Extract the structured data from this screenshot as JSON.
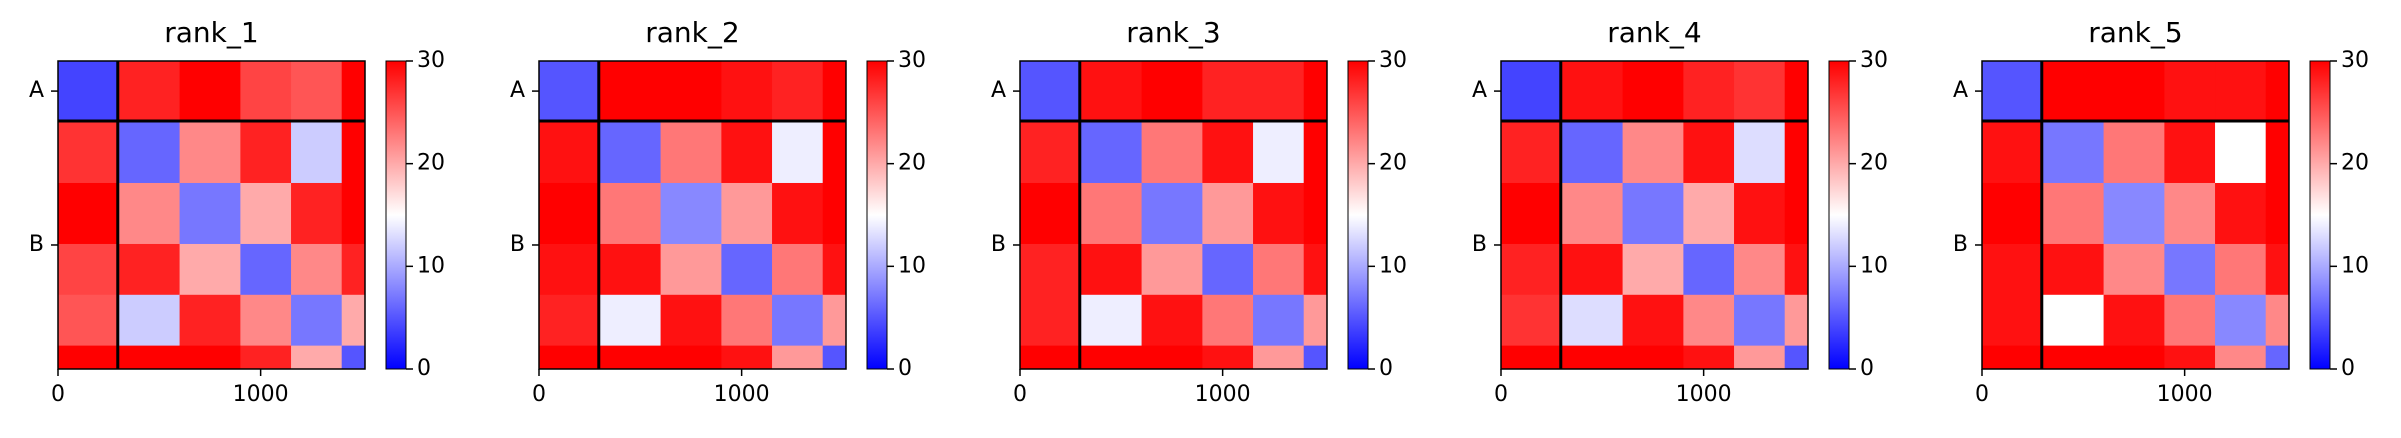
{
  "chart_data": [
    {
      "type": "heatmap",
      "title": "rank_1",
      "xlim": [
        0,
        1515
      ],
      "xticks": [
        0,
        1000
      ],
      "ylim": [
        0,
        1515
      ],
      "yticks": [
        {
          "value": 148,
          "label": "A"
        },
        {
          "value": 905,
          "label": "B"
        }
      ],
      "boundaries": [
        295
      ],
      "x_bins": [
        0,
        295,
        600,
        900,
        1150,
        1400,
        1515
      ],
      "y_bins": [
        0,
        295,
        600,
        900,
        1150,
        1400,
        1515
      ],
      "values": [
        [
          4,
          28,
          30,
          26,
          25,
          30
        ],
        [
          27,
          6,
          22,
          28,
          12,
          30
        ],
        [
          30,
          22,
          7,
          20,
          28,
          30
        ],
        [
          26,
          28,
          20,
          6,
          22,
          28
        ],
        [
          25,
          12,
          28,
          22,
          7,
          20
        ],
        [
          30,
          30,
          30,
          28,
          20,
          5
        ]
      ],
      "clim": [
        0,
        30
      ],
      "cticks": [
        0,
        10,
        20,
        30
      ]
    },
    {
      "type": "heatmap",
      "title": "rank_2",
      "xlim": [
        0,
        1515
      ],
      "xticks": [
        0,
        1000
      ],
      "ylim": [
        0,
        1515
      ],
      "yticks": [
        {
          "value": 148,
          "label": "A"
        },
        {
          "value": 905,
          "label": "B"
        }
      ],
      "boundaries": [
        295
      ],
      "x_bins": [
        0,
        295,
        600,
        900,
        1150,
        1400,
        1515
      ],
      "y_bins": [
        0,
        295,
        600,
        900,
        1150,
        1400,
        1515
      ],
      "values": [
        [
          5,
          30,
          30,
          29,
          28,
          30
        ],
        [
          29,
          6,
          23,
          29,
          14,
          30
        ],
        [
          30,
          23,
          8,
          21,
          29,
          30
        ],
        [
          29,
          29,
          21,
          6,
          23,
          29
        ],
        [
          28,
          14,
          29,
          23,
          7,
          21
        ],
        [
          30,
          30,
          30,
          29,
          21,
          5
        ]
      ],
      "clim": [
        0,
        30
      ],
      "cticks": [
        0,
        10,
        20,
        30
      ]
    },
    {
      "type": "heatmap",
      "title": "rank_3",
      "xlim": [
        0,
        1515
      ],
      "xticks": [
        0,
        1000
      ],
      "ylim": [
        0,
        1515
      ],
      "yticks": [
        {
          "value": 148,
          "label": "A"
        },
        {
          "value": 905,
          "label": "B"
        }
      ],
      "boundaries": [
        295
      ],
      "x_bins": [
        0,
        295,
        600,
        900,
        1150,
        1400,
        1515
      ],
      "y_bins": [
        0,
        295,
        600,
        900,
        1150,
        1400,
        1515
      ],
      "values": [
        [
          5,
          29,
          30,
          28,
          28,
          30
        ],
        [
          28,
          6,
          23,
          29,
          14,
          30
        ],
        [
          30,
          23,
          7,
          21,
          29,
          30
        ],
        [
          28,
          29,
          21,
          6,
          23,
          29
        ],
        [
          28,
          14,
          29,
          23,
          7,
          21
        ],
        [
          30,
          30,
          30,
          29,
          21,
          5
        ]
      ],
      "clim": [
        0,
        30
      ],
      "cticks": [
        0,
        10,
        20,
        30
      ]
    },
    {
      "type": "heatmap",
      "title": "rank_4",
      "xlim": [
        0,
        1515
      ],
      "xticks": [
        0,
        1000
      ],
      "ylim": [
        0,
        1515
      ],
      "yticks": [
        {
          "value": 148,
          "label": "A"
        },
        {
          "value": 905,
          "label": "B"
        }
      ],
      "boundaries": [
        295
      ],
      "x_bins": [
        0,
        295,
        600,
        900,
        1150,
        1400,
        1515
      ],
      "y_bins": [
        0,
        295,
        600,
        900,
        1150,
        1400,
        1515
      ],
      "values": [
        [
          4,
          29,
          30,
          28,
          27,
          30
        ],
        [
          28,
          6,
          22,
          29,
          13,
          30
        ],
        [
          30,
          22,
          7,
          20,
          29,
          30
        ],
        [
          28,
          29,
          20,
          6,
          22,
          29
        ],
        [
          27,
          13,
          29,
          22,
          7,
          21
        ],
        [
          30,
          30,
          30,
          29,
          21,
          5
        ]
      ],
      "clim": [
        0,
        30
      ],
      "cticks": [
        0,
        10,
        20,
        30
      ]
    },
    {
      "type": "heatmap",
      "title": "rank_5",
      "xlim": [
        0,
        1515
      ],
      "xticks": [
        0,
        1000
      ],
      "ylim": [
        0,
        1515
      ],
      "yticks": [
        {
          "value": 148,
          "label": "A"
        },
        {
          "value": 905,
          "label": "B"
        }
      ],
      "boundaries": [
        295
      ],
      "x_bins": [
        0,
        295,
        600,
        900,
        1150,
        1400,
        1515
      ],
      "y_bins": [
        0,
        295,
        600,
        900,
        1150,
        1400,
        1515
      ],
      "values": [
        [
          5,
          30,
          30,
          29,
          29,
          30
        ],
        [
          29,
          7,
          23,
          29,
          15,
          30
        ],
        [
          30,
          23,
          8,
          22,
          29,
          30
        ],
        [
          29,
          29,
          22,
          7,
          23,
          29
        ],
        [
          29,
          15,
          29,
          23,
          8,
          22
        ],
        [
          30,
          30,
          30,
          29,
          22,
          6
        ]
      ],
      "clim": [
        0,
        30
      ],
      "cticks": [
        0,
        10,
        20,
        30
      ]
    }
  ]
}
